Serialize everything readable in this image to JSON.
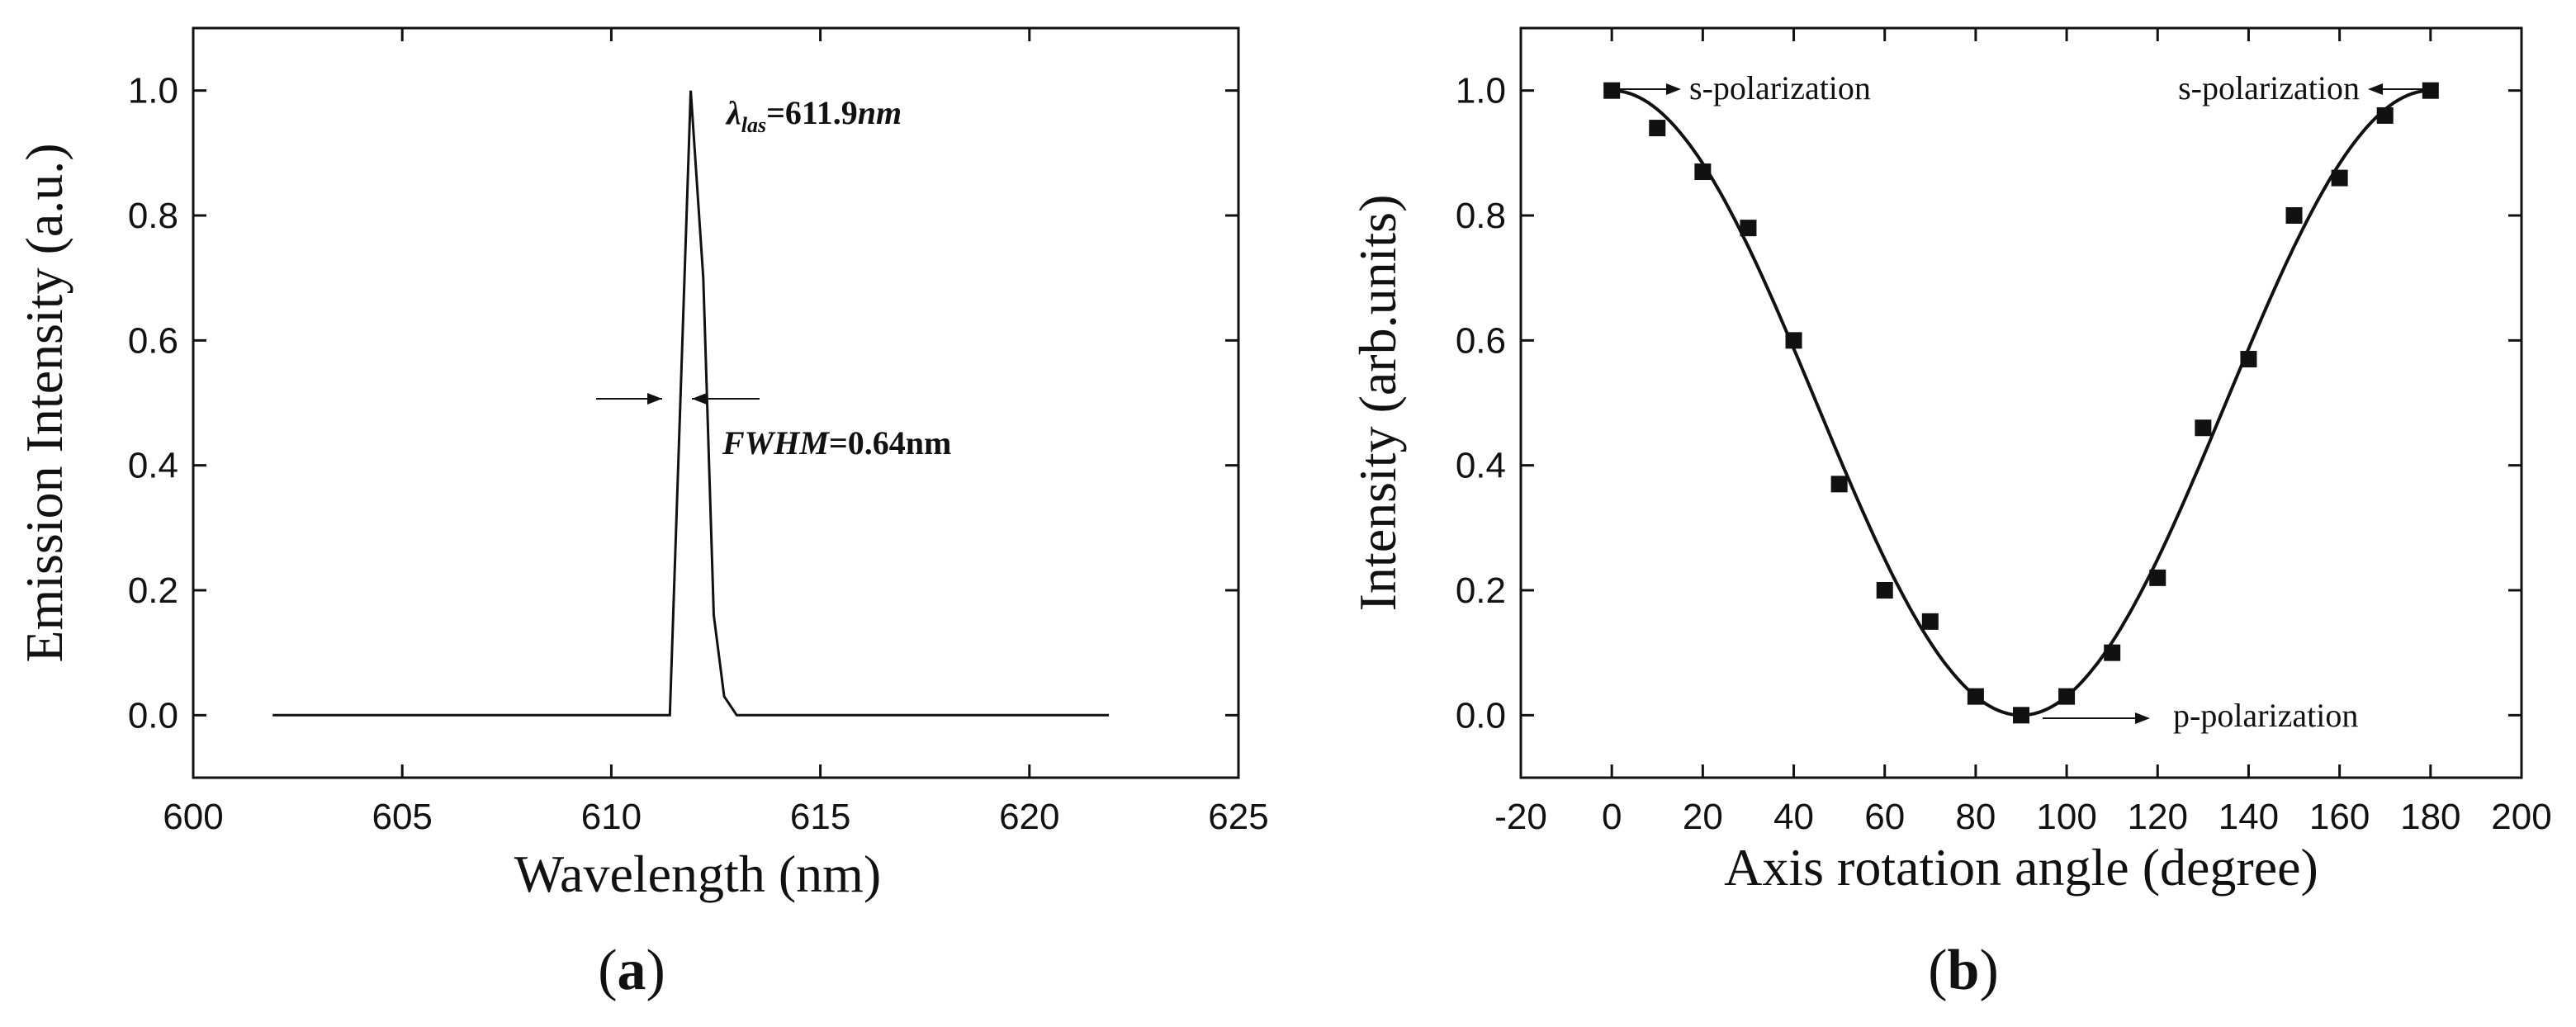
{
  "chart_data": [
    {
      "type": "line",
      "panel_label": "a",
      "xlabel": "Wavelength (nm)",
      "ylabel": "Emission Intensity (a.u.)",
      "xlim": [
        600,
        625
      ],
      "ylim": [
        -0.1,
        1.1
      ],
      "xticks": [
        600,
        605,
        610,
        615,
        620,
        625
      ],
      "yticks": [
        0.0,
        0.2,
        0.4,
        0.6,
        0.8,
        1.0
      ],
      "xtick_labels": [
        "600",
        "605",
        "610",
        "615",
        "620",
        "625"
      ],
      "ytick_labels": [
        "0.0",
        "0.2",
        "0.4",
        "0.6",
        "0.8",
        "1.0"
      ],
      "series": [
        {
          "name": "emission spectrum",
          "x": [
            601.9,
            611.4,
            611.65,
            611.9,
            612.2,
            612.45,
            612.7,
            613.0,
            621.9
          ],
          "y": [
            0.0,
            0.0,
            0.5,
            1.0,
            0.7,
            0.16,
            0.03,
            0.0,
            0.0
          ]
        }
      ],
      "annotations": {
        "lambda_symbol": "λ",
        "lambda_subscript": "las",
        "lambda_value": "=611.9",
        "lambda_unit": "nm",
        "fwhm_label": "FWHM",
        "fwhm_value": "=0.64nm"
      }
    },
    {
      "type": "scatter",
      "panel_label": "b",
      "xlabel": "Axis rotation angle (degree)",
      "ylabel": "Intensity (arb.units)",
      "xlim": [
        -20,
        200
      ],
      "ylim": [
        -0.1,
        1.1
      ],
      "xticks": [
        -20,
        0,
        20,
        40,
        60,
        80,
        100,
        120,
        140,
        160,
        180,
        200
      ],
      "yticks": [
        0.0,
        0.2,
        0.4,
        0.6,
        0.8,
        1.0
      ],
      "xtick_labels": [
        "-20",
        "0",
        "20",
        "40",
        "60",
        "80",
        "100",
        "120",
        "140",
        "160",
        "180",
        "200"
      ],
      "ytick_labels": [
        "0.0",
        "0.2",
        "0.4",
        "0.6",
        "0.8",
        "1.0"
      ],
      "series": [
        {
          "name": "measured",
          "x": [
            0,
            10,
            20,
            30,
            40,
            50,
            60,
            70,
            80,
            90,
            100,
            110,
            120,
            130,
            140,
            150,
            160,
            170,
            180
          ],
          "y": [
            1.0,
            0.94,
            0.87,
            0.78,
            0.6,
            0.37,
            0.2,
            0.15,
            0.03,
            0.0,
            0.03,
            0.1,
            0.22,
            0.46,
            0.57,
            0.8,
            0.86,
            0.96,
            1.0
          ]
        },
        {
          "name": "fit",
          "function": "cos^2",
          "x_range": [
            0,
            180
          ]
        }
      ],
      "annotations": {
        "s_left": "s-polarization",
        "s_right": "s-polarization",
        "p_label": "p-polarization"
      }
    }
  ]
}
